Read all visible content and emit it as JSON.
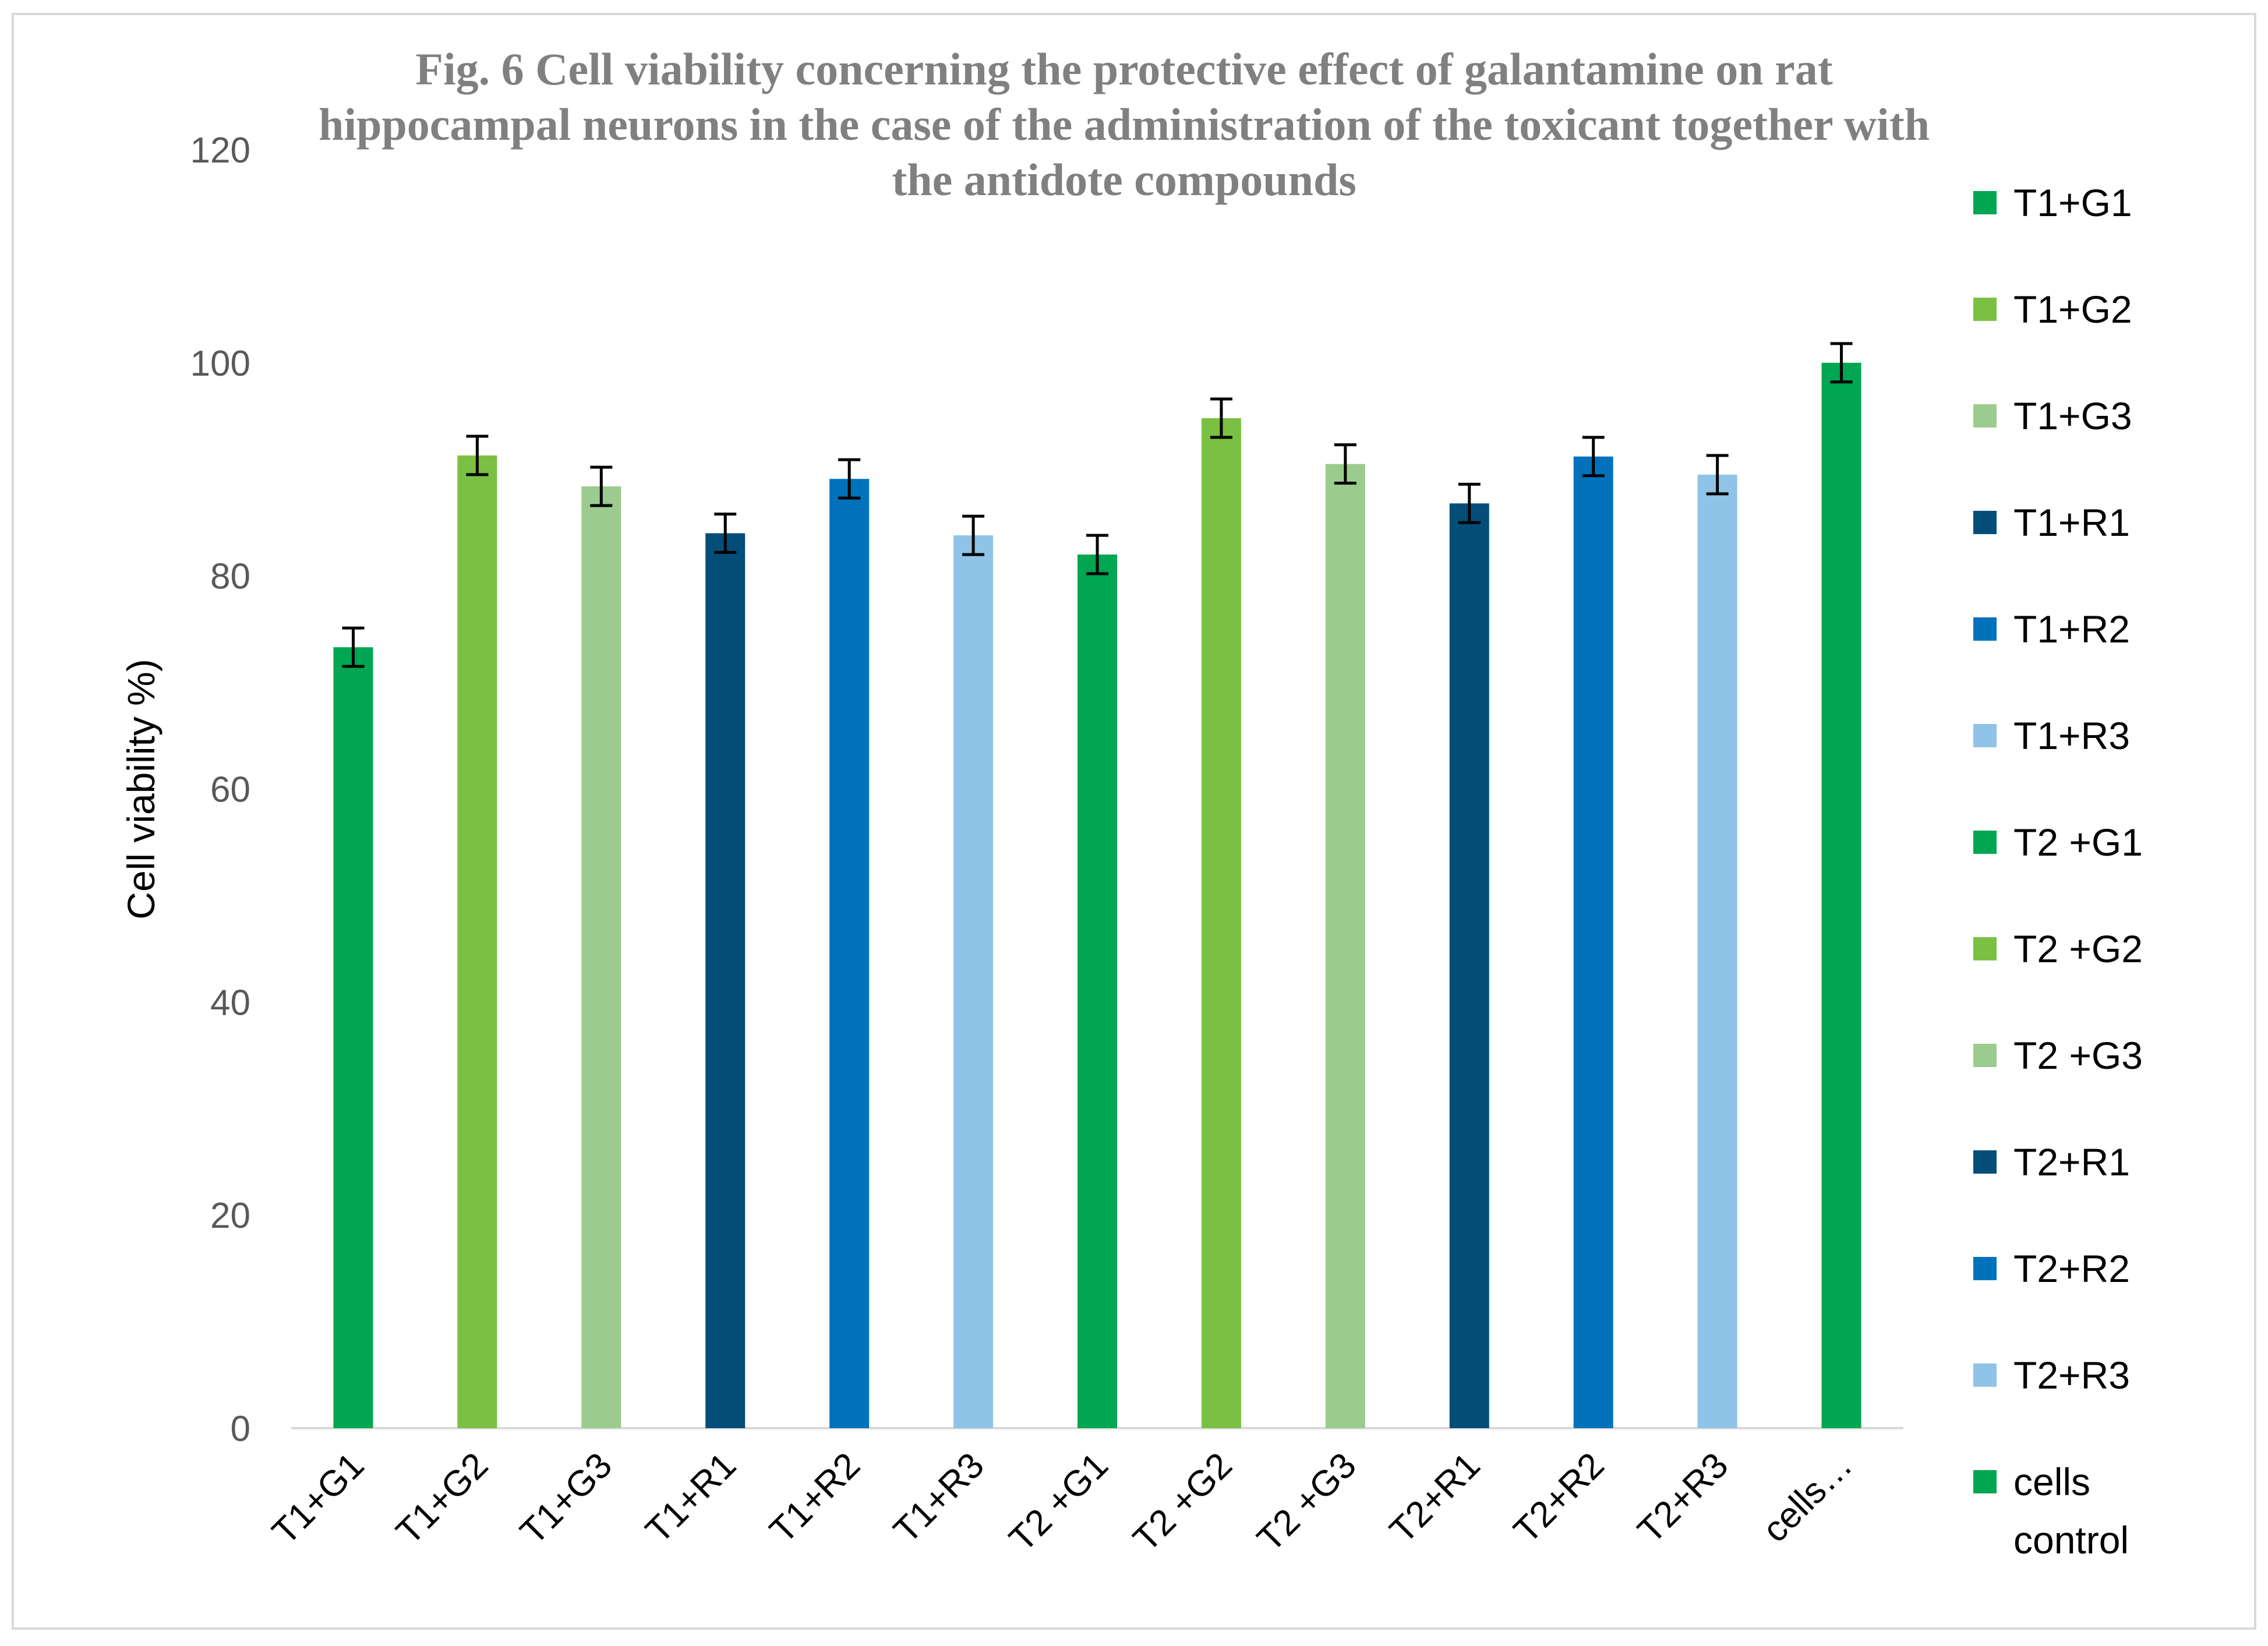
{
  "chart_data": {
    "type": "bar",
    "title": [
      "Fig. 6 Cell viability concerning the protective effect of galantamine on rat",
      "hippocampal neurons in the case of the administration of the toxicant together with",
      "the antidote compounds"
    ],
    "xlabel": "",
    "ylabel": "Cell viability %)",
    "ylim": [
      0,
      120
    ],
    "yticks": [
      "0",
      "20",
      "40",
      "60",
      "80",
      "100",
      "120"
    ],
    "grid": false,
    "legend_position": "right",
    "categories": [
      "T1+G1",
      "T1+G2",
      "T1+G3",
      "T1+R1",
      "T1+R2",
      "T1+R3",
      "T2 +G1",
      "T2 +G2",
      "T2 +G3",
      "T2+R1",
      "T2+R2",
      "T2+R3",
      "cells…"
    ],
    "values": [
      73.3,
      91.3,
      88.4,
      84.0,
      89.1,
      83.8,
      82.0,
      94.8,
      90.5,
      86.8,
      91.2,
      89.5,
      100.0
    ],
    "errors": [
      1.8,
      1.8,
      1.8,
      1.8,
      1.8,
      1.8,
      1.8,
      1.8,
      1.8,
      1.8,
      1.8,
      1.8,
      1.8
    ],
    "colors": [
      "#00A651",
      "#7AC143",
      "#9BCB8E",
      "#034D79",
      "#0072BC",
      "#8FC3E7",
      "#00A651",
      "#7AC143",
      "#9BCB8E",
      "#034D79",
      "#0072BC",
      "#8FC3E7",
      "#00A651"
    ],
    "legend": [
      {
        "label": [
          "T1+G1"
        ],
        "color": "#00A651"
      },
      {
        "label": [
          "T1+G2"
        ],
        "color": "#7AC143"
      },
      {
        "label": [
          "T1+G3"
        ],
        "color": "#9BCB8E"
      },
      {
        "label": [
          "T1+R1"
        ],
        "color": "#034D79"
      },
      {
        "label": [
          "T1+R2"
        ],
        "color": "#0072BC"
      },
      {
        "label": [
          "T1+R3"
        ],
        "color": "#8FC3E7"
      },
      {
        "label": [
          "T2 +G1"
        ],
        "color": "#00A651"
      },
      {
        "label": [
          "T2 +G2"
        ],
        "color": "#7AC143"
      },
      {
        "label": [
          "T2 +G3"
        ],
        "color": "#9BCB8E"
      },
      {
        "label": [
          "T2+R1"
        ],
        "color": "#034D79"
      },
      {
        "label": [
          "T2+R2"
        ],
        "color": "#0072BC"
      },
      {
        "label": [
          "T2+R3"
        ],
        "color": "#8FC3E7"
      },
      {
        "label": [
          "cells",
          "control"
        ],
        "color": "#00A651"
      }
    ]
  }
}
